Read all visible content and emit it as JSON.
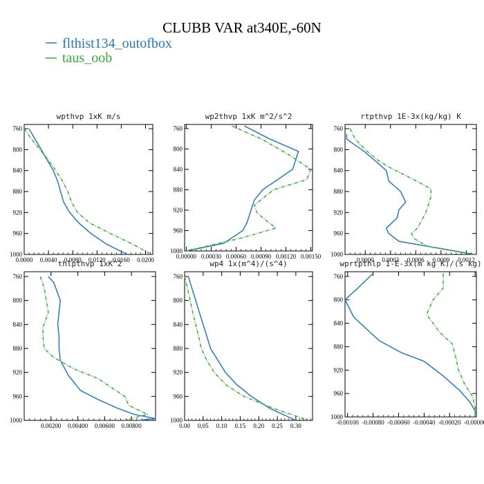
{
  "title": "CLUBB VAR at340E,-60N",
  "legend": [
    {
      "name": "flthist134_outofbox",
      "color": "#2878b5",
      "style": "solid"
    },
    {
      "name": "taus_oob",
      "color": "#3aa637",
      "style": "dashed"
    }
  ],
  "chart_data": [
    {
      "type": "line",
      "title": "wpthvp  1xK m/s",
      "xlim": [
        0,
        0.0212
      ],
      "ylim": [
        1000,
        752
      ],
      "xticks": [
        0,
        0.004,
        0.008,
        0.012,
        0.016,
        0.02
      ],
      "xtick_labels": [
        "0.0000",
        "0.0040",
        "0.0080",
        "0.0120",
        "0.0160",
        "0.0200"
      ],
      "yticks": [
        760,
        800,
        840,
        880,
        920,
        960,
        1000
      ],
      "series": [
        {
          "name": "flthist134_outofbox",
          "points": [
            [
              0.0008,
              760
            ],
            [
              0.0018,
              780
            ],
            [
              0.0028,
              800
            ],
            [
              0.0038,
              820
            ],
            [
              0.0048,
              840
            ],
            [
              0.0055,
              860
            ],
            [
              0.006,
              880
            ],
            [
              0.0065,
              900
            ],
            [
              0.0075,
              920
            ],
            [
              0.009,
              940
            ],
            [
              0.011,
              960
            ],
            [
              0.0135,
              980
            ],
            [
              0.017,
              1000
            ]
          ]
        },
        {
          "name": "taus_oob",
          "points": [
            [
              0.0,
              760
            ],
            [
              0.0012,
              780
            ],
            [
              0.0026,
              800
            ],
            [
              0.004,
              820
            ],
            [
              0.0052,
              840
            ],
            [
              0.0063,
              860
            ],
            [
              0.0072,
              880
            ],
            [
              0.0078,
              900
            ],
            [
              0.0088,
              920
            ],
            [
              0.0108,
              940
            ],
            [
              0.0142,
              960
            ],
            [
              0.0178,
              980
            ],
            [
              0.021,
              1000
            ]
          ]
        }
      ]
    },
    {
      "type": "line",
      "title": "wp2thvp  1xK m^2/s^2",
      "xlim": [
        -2e-05,
        0.00152
      ],
      "ylim": [
        1000,
        752
      ],
      "xticks": [
        0,
        0.0003,
        0.0006,
        0.0009,
        0.0012,
        0.0015
      ],
      "xtick_labels": [
        "0.00000",
        "0.00030",
        "0.00060",
        "0.00090",
        "0.00120",
        "0.00150"
      ],
      "yticks": [
        760,
        800,
        840,
        880,
        920,
        960,
        1000
      ],
      "series": [
        {
          "name": "flthist134_outofbox",
          "points": [
            [
              0.0007,
              755
            ],
            [
              0.001,
              780
            ],
            [
              0.00135,
              805
            ],
            [
              0.00128,
              840
            ],
            [
              0.0011,
              860
            ],
            [
              0.00092,
              880
            ],
            [
              0.00082,
              900
            ],
            [
              0.00078,
              920
            ],
            [
              0.00073,
              945
            ],
            [
              0.00068,
              960
            ],
            [
              0.00045,
              985
            ],
            [
              0.0,
              1000
            ]
          ]
        },
        {
          "name": "taus_oob",
          "points": [
            [
              0.00055,
              755
            ],
            [
              0.0009,
              780
            ],
            [
              0.00122,
              810
            ],
            [
              0.0015,
              840
            ],
            [
              0.00145,
              860
            ],
            [
              0.00105,
              880
            ],
            [
              0.00082,
              910
            ],
            [
              0.00085,
              925
            ],
            [
              0.001,
              945
            ],
            [
              0.00108,
              955
            ],
            [
              0.00065,
              975
            ],
            [
              0.0,
              1000
            ]
          ]
        }
      ]
    },
    {
      "type": "line",
      "title": "rtpthvp  1E-3x(kg/kg) K",
      "xlim": [
        -0.00024,
        0.00132
      ],
      "ylim": [
        1000,
        752
      ],
      "xticks": [
        0,
        0.0003,
        0.0006,
        0.0009,
        0.0012
      ],
      "xtick_labels": [
        "0.0000",
        "0.0003",
        "0.0006",
        "0.0009",
        "0.0012"
      ],
      "yticks": [
        760,
        800,
        840,
        880,
        920,
        960,
        1000
      ],
      "series": [
        {
          "name": "flthist134_outofbox",
          "points": [
            [
              -0.00022,
              770
            ],
            [
              -0.00022,
              780
            ],
            [
              0.0,
              805
            ],
            [
              0.00018,
              830
            ],
            [
              0.00025,
              840
            ],
            [
              0.00028,
              860
            ],
            [
              0.00042,
              880
            ],
            [
              0.00048,
              900
            ],
            [
              0.0004,
              915
            ],
            [
              0.00038,
              930
            ],
            [
              0.00025,
              950
            ],
            [
              0.00028,
              960
            ],
            [
              0.0004,
              975
            ],
            [
              0.0013,
              1000
            ]
          ]
        },
        {
          "name": "taus_oob",
          "points": [
            [
              -0.00018,
              760
            ],
            [
              -0.00012,
              780
            ],
            [
              0.0,
              800
            ],
            [
              0.00015,
              820
            ],
            [
              0.0003,
              835
            ],
            [
              0.00055,
              855
            ],
            [
              0.00078,
              875
            ],
            [
              0.00078,
              890
            ],
            [
              0.00072,
              920
            ],
            [
              0.00062,
              950
            ],
            [
              0.00055,
              960
            ],
            [
              0.00058,
              970
            ],
            [
              0.00075,
              985
            ],
            [
              0.0013,
              1000
            ]
          ]
        }
      ]
    },
    {
      "type": "line",
      "title": "thlpthvp  1xK^2",
      "xlim": [
        0,
        0.0098
      ],
      "ylim": [
        1000,
        752
      ],
      "xticks": [
        0.002,
        0.004,
        0.006,
        0.008
      ],
      "xtick_labels": [
        "0.00200",
        "0.00400",
        "0.00600",
        "0.00800"
      ],
      "yticks": [
        760,
        800,
        840,
        880,
        920,
        960,
        1000
      ],
      "series": [
        {
          "name": "flthist134_outofbox",
          "points": [
            [
              0.0018,
              760
            ],
            [
              0.0022,
              770
            ],
            [
              0.0027,
              800
            ],
            [
              0.0025,
              840
            ],
            [
              0.0026,
              860
            ],
            [
              0.0026,
              880
            ],
            [
              0.0027,
              900
            ],
            [
              0.0033,
              925
            ],
            [
              0.0042,
              950
            ],
            [
              0.0055,
              965
            ],
            [
              0.007,
              980
            ],
            [
              0.0082,
              990
            ],
            [
              0.0098,
              997
            ],
            [
              0.0085,
              1000
            ]
          ]
        },
        {
          "name": "taus_oob",
          "points": [
            [
              0.0012,
              760
            ],
            [
              0.0015,
              780
            ],
            [
              0.0018,
              820
            ],
            [
              0.0014,
              845
            ],
            [
              0.0014,
              860
            ],
            [
              0.0015,
              880
            ],
            [
              0.0022,
              895
            ],
            [
              0.0038,
              915
            ],
            [
              0.0055,
              930
            ],
            [
              0.0075,
              960
            ],
            [
              0.0078,
              975
            ],
            [
              0.0092,
              990
            ],
            [
              0.0075,
              1000
            ]
          ]
        }
      ]
    },
    {
      "type": "line",
      "title": "wp4  1x(m^4)/(s^4)",
      "xlim": [
        0,
        0.345
      ],
      "ylim": [
        1000,
        752
      ],
      "xticks": [
        0,
        0.05,
        0.1,
        0.15,
        0.2,
        0.25,
        0.3
      ],
      "xtick_labels": [
        "0.00",
        "0.05",
        "0.10",
        "0.15",
        "0.20",
        "0.25",
        "0.30"
      ],
      "yticks": [
        760,
        800,
        840,
        880,
        920,
        960,
        1000
      ],
      "series": [
        {
          "name": "flthist134_outofbox",
          "points": [
            [
              0.01,
              760
            ],
            [
              0.02,
              780
            ],
            [
              0.03,
              800
            ],
            [
              0.04,
              820
            ],
            [
              0.05,
              840
            ],
            [
              0.06,
              860
            ],
            [
              0.07,
              880
            ],
            [
              0.09,
              900
            ],
            [
              0.11,
              920
            ],
            [
              0.14,
              940
            ],
            [
              0.18,
              960
            ],
            [
              0.23,
              980
            ],
            [
              0.3,
              1000
            ]
          ]
        },
        {
          "name": "taus_oob",
          "points": [
            [
              0.0,
              760
            ],
            [
              0.008,
              780
            ],
            [
              0.015,
              800
            ],
            [
              0.022,
              820
            ],
            [
              0.03,
              840
            ],
            [
              0.038,
              860
            ],
            [
              0.045,
              880
            ],
            [
              0.06,
              900
            ],
            [
              0.08,
              920
            ],
            [
              0.11,
              940
            ],
            [
              0.16,
              960
            ],
            [
              0.24,
              980
            ],
            [
              0.335,
              1000
            ]
          ]
        }
      ]
    },
    {
      "type": "line",
      "title": "wprtpthlp  1-E-3x(m kg K)/(s kg)",
      "xlim": [
        -0.00102,
        1e-05
      ],
      "ylim": [
        1000,
        752
      ],
      "xticks": [
        -0.001,
        -0.0008,
        -0.0006,
        -0.0004,
        -0.0002,
        0
      ],
      "xtick_labels": [
        "-0.00100",
        "-0.00080",
        "-0.00060",
        "-0.00040",
        "-0.00020",
        "-0.00000"
      ],
      "yticks": [
        760,
        800,
        840,
        880,
        920,
        960,
        1000
      ],
      "series": [
        {
          "name": "flthist134_outofbox",
          "points": [
            [
              -0.0008,
              755
            ],
            [
              -0.00092,
              780
            ],
            [
              -0.00102,
              800
            ],
            [
              -0.00095,
              830
            ],
            [
              -0.00085,
              850
            ],
            [
              -0.00075,
              870
            ],
            [
              -0.00058,
              890
            ],
            [
              -0.0004,
              905
            ],
            [
              -0.00025,
              930
            ],
            [
              -0.00012,
              955
            ],
            [
              -4e-05,
              975
            ],
            [
              0.0,
              990
            ],
            [
              0.0,
              1000
            ]
          ]
        },
        {
          "name": "taus_oob",
          "points": [
            [
              -0.00025,
              755
            ],
            [
              -0.00025,
              780
            ],
            [
              -0.00033,
              800
            ],
            [
              -0.00038,
              825
            ],
            [
              -0.00028,
              855
            ],
            [
              -0.00018,
              875
            ],
            [
              -0.00015,
              900
            ],
            [
              -0.00013,
              920
            ],
            [
              -8e-05,
              945
            ],
            [
              -2e-05,
              965
            ],
            [
              0.0,
              985
            ],
            [
              0.0,
              1000
            ]
          ]
        }
      ]
    }
  ]
}
